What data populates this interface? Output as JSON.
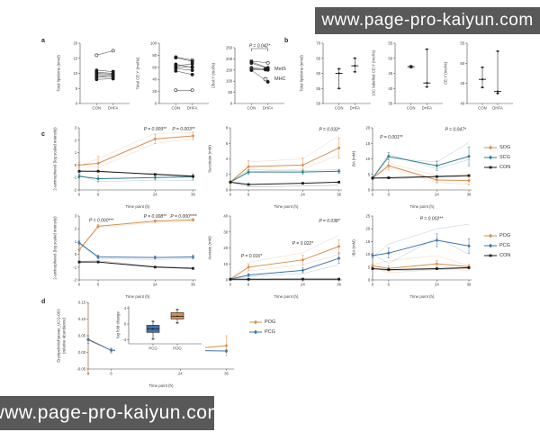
{
  "watermark": {
    "text": "www.page-pro-kaiyun.com"
  },
  "panel_labels": {
    "a": "a",
    "b": "b",
    "c": "c",
    "d": "d"
  },
  "colors": {
    "orange": "#D88E4C",
    "teal": "#2D7D8E",
    "blue": "#4173A8",
    "black": "#1c1c1c",
    "watermark_bg": "#595959"
  },
  "legends": {
    "mets": {
      "items": [
        {
          "label": "MetS",
          "marker": "filled-circle",
          "color": "#1c1c1c"
        },
        {
          "label": "MHC",
          "marker": "open-circle",
          "color": "#1c1c1c"
        }
      ]
    },
    "c_top": {
      "items": [
        {
          "label": "SOG",
          "marker": "diamond",
          "color": "#D88E4C"
        },
        {
          "label": "SCG",
          "marker": "diamond",
          "color": "#2D7D8E"
        },
        {
          "label": "CON",
          "marker": "square",
          "color": "#1c1c1c"
        }
      ]
    },
    "c_bottom": {
      "items": [
        {
          "label": "POG",
          "marker": "diamond",
          "color": "#D88E4C"
        },
        {
          "label": "PCG",
          "marker": "diamond",
          "color": "#4173A8"
        },
        {
          "label": "CON",
          "marker": "square",
          "color": "#1c1c1c"
        }
      ]
    },
    "d": {
      "items": [
        {
          "label": "POG",
          "marker": "diamond",
          "color": "#D88E4C"
        },
        {
          "label": "PCG",
          "marker": "diamond",
          "color": "#4173A8"
        }
      ]
    }
  },
  "chart_data": [
    {
      "id": "a1",
      "type": "pairs",
      "ylabel": "Total lipidome (nmol)",
      "categories": [
        "CON",
        "DHFA"
      ],
      "ylim": [
        0,
        20
      ],
      "yticks": [
        0,
        5,
        10,
        15,
        20
      ],
      "pairs": [
        {
          "a": 16,
          "b": 17.5,
          "open": true
        },
        {
          "a": 11,
          "b": 10.6
        },
        {
          "a": 10.4,
          "b": 10
        },
        {
          "a": 10,
          "b": 9.7
        },
        {
          "a": 9.6,
          "b": 9.4
        },
        {
          "a": 9.1,
          "b": 8.8
        },
        {
          "a": 8.6,
          "b": 9
        },
        {
          "a": 8,
          "b": 8.2
        }
      ]
    },
    {
      "id": "a2",
      "type": "pairs",
      "ylabel": "Total CE:Y (mol%)",
      "categories": [
        "CON",
        "DHFA"
      ],
      "ylim": [
        0,
        100
      ],
      "yticks": [
        0,
        20,
        40,
        60,
        80,
        100
      ],
      "pairs": [
        {
          "a": 77,
          "b": 72,
          "open": true
        },
        {
          "a": 76,
          "b": 70
        },
        {
          "a": 65,
          "b": 60
        },
        {
          "a": 62,
          "b": 66
        },
        {
          "a": 60,
          "b": 61
        },
        {
          "a": 58,
          "b": 55
        },
        {
          "a": 54,
          "b": 48
        },
        {
          "a": 22,
          "b": 22,
          "open": true
        }
      ]
    },
    {
      "id": "a3",
      "type": "pairs",
      "ylabel": "Chol:Y (mol%)",
      "p_label": "P = 0.042*",
      "categories": [
        "CON",
        "DHFA"
      ],
      "ylim": [
        0,
        250
      ],
      "yticks": [
        0,
        50,
        100,
        150,
        200,
        250
      ],
      "pairs": [
        {
          "a": 190,
          "b": 182,
          "open": true
        },
        {
          "a": 186,
          "b": 160
        },
        {
          "a": 181,
          "b": 157
        },
        {
          "a": 160,
          "b": 154
        },
        {
          "a": 156,
          "b": 150,
          "open": true
        },
        {
          "a": 152,
          "b": 152
        },
        {
          "a": 149,
          "b": 97
        }
      ]
    },
    {
      "id": "b1",
      "type": "range",
      "ylabel": "Total lipidome (nmol)",
      "categories": [
        "CON",
        "DHFA"
      ],
      "ylim": [
        50,
        70
      ],
      "yticks": [
        50,
        55,
        60,
        65,
        70
      ],
      "groups": [
        {
          "med": 60,
          "lo": 55,
          "hi": 61.5,
          "points": [
            55,
            60,
            61.5
          ]
        },
        {
          "med": 62.5,
          "lo": 60.5,
          "hi": 65,
          "points": [
            60.5,
            62.5,
            65
          ]
        }
      ]
    },
    {
      "id": "b2",
      "type": "range",
      "ylabel": "13C labelled CE:Y (mol%)",
      "categories": [
        "CON",
        "DHFA"
      ],
      "ylim": [
        35,
        55
      ],
      "yticks": [
        35,
        40,
        45,
        50,
        55
      ],
      "groups": [
        {
          "med": 47.2,
          "lo": 46.9,
          "hi": 47.5,
          "points": [
            46.9,
            47.2,
            47.5
          ]
        },
        {
          "med": 41.8,
          "lo": 40.5,
          "hi": 53,
          "points": [
            40.5,
            41.8,
            53
          ]
        }
      ]
    },
    {
      "id": "b3",
      "type": "range",
      "ylabel": "CE:Y (mol%)",
      "categories": [
        "CON",
        "DHFA"
      ],
      "ylim": [
        40,
        55
      ],
      "yticks": [
        40,
        45,
        50,
        55
      ],
      "groups": [
        {
          "med": 46,
          "lo": 44,
          "hi": 49,
          "points": [
            44,
            46,
            49
          ]
        },
        {
          "med": 43,
          "lo": 42.5,
          "hi": 53,
          "points": [
            42.5,
            43,
            53
          ]
        }
      ]
    },
    {
      "id": "c1",
      "type": "line",
      "ylabel": "2-aminophenol (log scaled intensity)",
      "xlabel": "Time point (h)",
      "x_values": [
        0,
        6,
        24,
        36
      ],
      "xlim": [
        0,
        37
      ],
      "ylim": [
        -2,
        3
      ],
      "yticks": [
        -2,
        -1,
        0,
        1,
        2,
        3
      ],
      "annotations": [
        {
          "x": 24,
          "y": 2.8,
          "text": "P = 0.009**"
        },
        {
          "x": 34,
          "y": 2.8,
          "text": "P = 0.003**"
        }
      ],
      "series": [
        {
          "name": "SOG",
          "color": "#D88E4C",
          "marker": "diamond",
          "mean": [
            0,
            0.15,
            2.1,
            2.35
          ],
          "err": [
            0.2,
            0.55,
            0.35,
            0.3
          ],
          "reps": [
            [
              -0.05,
              0.5,
              2.55,
              2.6
            ],
            [
              0.05,
              -0.2,
              1.75,
              2.1
            ]
          ]
        },
        {
          "name": "SCG",
          "color": "#2D7D8E",
          "marker": "diamond",
          "mean": [
            -0.9,
            -1.1,
            -1.0,
            -0.95
          ],
          "err": [
            0.15,
            0.25,
            0.2,
            0.25
          ],
          "reps": [
            [
              -0.8,
              -1.35,
              -1.2,
              -1.25
            ]
          ]
        },
        {
          "name": "CON",
          "color": "#1c1c1c",
          "marker": "square",
          "mean": [
            -0.5,
            -0.5,
            -0.75,
            -0.9
          ],
          "reps": [
            [
              -0.45,
              -0.55,
              -0.7,
              -0.85
            ]
          ]
        }
      ]
    },
    {
      "id": "c2",
      "type": "line",
      "ylabel": "Succinate (mM)",
      "xlabel": "Time point (h)",
      "x_values": [
        0,
        6,
        24,
        36
      ],
      "xlim": [
        0,
        37
      ],
      "ylim": [
        0,
        8
      ],
      "yticks": [
        0,
        2,
        4,
        6,
        8
      ],
      "annotations": [
        {
          "x": 33,
          "y": 7.6,
          "text": "P = 0.033*"
        }
      ],
      "series": [
        {
          "name": "SOG",
          "color": "#D88E4C",
          "marker": "diamond",
          "mean": [
            1,
            3,
            3.2,
            5.4
          ],
          "err": [
            0.2,
            0.8,
            0.9,
            1.3
          ],
          "reps": [
            [
              1,
              3.6,
              4,
              7
            ],
            [
              1,
              2.3,
              2.7,
              4.5
            ]
          ]
        },
        {
          "name": "SCG",
          "color": "#2D7D8E",
          "marker": "diamond",
          "mean": [
            1,
            2.3,
            2.3,
            2.4
          ],
          "err": [
            0.1,
            0.3,
            0.25,
            0.25
          ],
          "reps": [
            [
              1,
              2.6,
              2.5,
              2.6
            ]
          ]
        },
        {
          "name": "CON",
          "color": "#1c1c1c",
          "marker": "square",
          "mean": [
            1,
            0.7,
            0.85,
            1.0
          ],
          "reps": [
            [
              1,
              0.4,
              0.5,
              0.6
            ]
          ]
        }
      ]
    },
    {
      "id": "c3",
      "type": "line",
      "ylabel": "BA (mM)",
      "xlabel": "Time point (h)",
      "x_values": [
        0,
        6,
        24,
        36
      ],
      "xlim": [
        0,
        37
      ],
      "ylim": [
        0,
        20
      ],
      "yticks": [
        0,
        5,
        10,
        15,
        20
      ],
      "annotations": [
        {
          "x": 7,
          "y": 16.5,
          "text": "P = 0.001**"
        },
        {
          "x": 31,
          "y": 19,
          "text": "P = 0.047*"
        }
      ],
      "series": [
        {
          "name": "SOG",
          "color": "#D88E4C",
          "marker": "diamond",
          "mean": [
            3.8,
            7.8,
            3.2,
            3.0
          ],
          "err": [
            0.4,
            1.2,
            1,
            1.5
          ],
          "reps": [
            [
              3.8,
              7.2,
              2.4,
              1.8
            ],
            [
              3.8,
              8.6,
              4.6,
              5.2
            ]
          ]
        },
        {
          "name": "SCG",
          "color": "#2D7D8E",
          "marker": "diamond",
          "mean": [
            3.8,
            10.8,
            7.8,
            10.8
          ],
          "err": [
            0.4,
            1.2,
            1.5,
            3
          ],
          "reps": [
            [
              3.8,
              10.2,
              9,
              15.3
            ],
            [
              3.8,
              11.5,
              6.8,
              9.8
            ]
          ]
        },
        {
          "name": "CON",
          "color": "#1c1c1c",
          "marker": "square",
          "mean": [
            3.8,
            3.9,
            4.3,
            4.6
          ],
          "reps": [
            [
              3.8,
              3.6,
              4.1,
              4.4
            ]
          ]
        }
      ]
    },
    {
      "id": "c4",
      "type": "line",
      "ylabel": "2-aminophenol (log scaled intensity)",
      "xlabel": "Time point (h)",
      "x_values": [
        0,
        6,
        24,
        36
      ],
      "xlim": [
        0,
        37
      ],
      "ylim": [
        -2,
        3
      ],
      "yticks": [
        -2,
        -1,
        0,
        1,
        2,
        3
      ],
      "annotations": [
        {
          "x": 7,
          "y": 2.55,
          "text": "P = 0.000***"
        },
        {
          "x": 24,
          "y": 2.85,
          "text": "P = 0.008**"
        },
        {
          "x": 34,
          "y": 2.85,
          "text": "P = 0.000****"
        }
      ],
      "series": [
        {
          "name": "POG",
          "color": "#D88E4C",
          "marker": "diamond",
          "mean": [
            0.35,
            2.2,
            2.6,
            2.7
          ],
          "err": [
            0.15,
            0.12,
            0.1,
            0.1
          ],
          "reps": [
            [
              0.3,
              2.1,
              2.5,
              2.6
            ]
          ]
        },
        {
          "name": "PCG",
          "color": "#4173A8",
          "marker": "diamond",
          "mean": [
            0.9,
            -0.2,
            -0.25,
            -0.2
          ],
          "err": [
            0.15,
            0.15,
            0.12,
            0.15
          ],
          "reps": [
            [
              0.85,
              -0.35,
              -0.4,
              -0.35
            ]
          ]
        },
        {
          "name": "CON",
          "color": "#1c1c1c",
          "marker": "square",
          "mean": [
            -0.6,
            -0.6,
            -1.0,
            -1.1
          ],
          "reps": [
            [
              -0.55,
              -0.5,
              -0.95,
              -1.05
            ]
          ]
        }
      ]
    },
    {
      "id": "c5",
      "type": "line",
      "ylabel": "Acetate (mM)",
      "xlabel": "Time point (h)",
      "x_values": [
        0,
        6,
        24,
        36
      ],
      "xlim": [
        0,
        37
      ],
      "ylim": [
        0,
        40
      ],
      "yticks": [
        0,
        10,
        20,
        30,
        40
      ],
      "annotations": [
        {
          "x": 7,
          "y": 14,
          "text": "P = 0.016*"
        },
        {
          "x": 24,
          "y": 22,
          "text": "P = 0.022*"
        },
        {
          "x": 33,
          "y": 36,
          "text": "P = 0.038*"
        }
      ],
      "series": [
        {
          "name": "POG",
          "color": "#D88E4C",
          "marker": "diamond",
          "mean": [
            0.5,
            8,
            12.5,
            21
          ],
          "err": [
            0.3,
            2,
            3,
            4
          ],
          "reps": [
            [
              0.5,
              11,
              17,
              28
            ],
            [
              0.5,
              5.5,
              9.5,
              16
            ]
          ]
        },
        {
          "name": "PCG",
          "color": "#4173A8",
          "marker": "diamond",
          "mean": [
            0.5,
            3,
            6,
            13.5
          ],
          "err": [
            0.3,
            1,
            1.5,
            3
          ],
          "reps": [
            [
              0.5,
              2,
              4,
              9.5
            ]
          ]
        },
        {
          "name": "CON",
          "color": "#1c1c1c",
          "marker": "square",
          "mean": [
            0.4,
            0.4,
            0.5,
            0.5
          ],
          "reps": [
            [
              0.4,
              0.3,
              0.4,
              0.4
            ]
          ]
        }
      ]
    },
    {
      "id": "c6",
      "type": "line",
      "ylabel": "IBA (mM)",
      "xlabel": "Time point (h)",
      "x_values": [
        0,
        6,
        24,
        36
      ],
      "xlim": [
        0,
        37
      ],
      "ylim": [
        0,
        25
      ],
      "yticks": [
        0,
        5,
        10,
        15,
        20,
        25
      ],
      "annotations": [
        {
          "x": 22,
          "y": 23.5,
          "text": "P = 0.002**"
        }
      ],
      "series": [
        {
          "name": "POG",
          "color": "#D88E4C",
          "marker": "diamond",
          "mean": [
            5.5,
            4.5,
            6.3,
            5.2
          ],
          "err": [
            0.8,
            1,
            1.2,
            1
          ],
          "reps": [
            [
              6,
              7.5,
              9.5,
              5.5
            ],
            [
              5,
              2.8,
              4,
              3.8
            ]
          ]
        },
        {
          "name": "PCG",
          "color": "#4173A8",
          "marker": "diamond",
          "mean": [
            9.5,
            10.5,
            15.5,
            13.3
          ],
          "err": [
            1,
            2,
            2.5,
            2.8
          ],
          "reps": [
            [
              9,
              14,
              20,
              21.8
            ],
            [
              10,
              6.5,
              16.5,
              10
            ]
          ]
        },
        {
          "name": "CON",
          "color": "#1c1c1c",
          "marker": "square",
          "mean": [
            4.4,
            4,
            4.4,
            4.8
          ],
          "reps": [
            [
              4.4,
              3.6,
              4.1,
              4.5
            ]
          ]
        }
      ]
    },
    {
      "id": "d",
      "type": "line",
      "ylabel": [
        "Erysipelotrichaceae_UCG-003",
        "(relative abundance)"
      ],
      "xlabel": "Time point (h)",
      "x_values": [
        0,
        6,
        24,
        36
      ],
      "xlim": [
        0,
        38
      ],
      "ylim": [
        -0.05,
        0.15
      ],
      "yticks": [
        -0.05,
        0,
        0.05,
        0.1,
        0.15
      ],
      "ytick_labels": [
        "-0.05",
        "0.00",
        "0.05",
        "0.10",
        "0.15"
      ],
      "series": [
        {
          "name": "POG",
          "color": "#D88E4C",
          "marker": "diamond",
          "mean": [
            0.04,
            0.006,
            0.008,
            0.02
          ],
          "err": [
            0.105,
            0.008,
            0.01,
            0.03
          ]
        },
        {
          "name": "PCG",
          "color": "#4173A8",
          "marker": "diamond",
          "mean": [
            0.038,
            0.006,
            0.006,
            0.004
          ],
          "err": [
            0.012,
            0.005,
            0.005,
            0.004
          ]
        }
      ]
    },
    {
      "id": "d_inset",
      "type": "box",
      "ylabel": "log fold change",
      "categories": [
        "PCG",
        "POG"
      ],
      "ylim": [
        -5,
        4.6
      ],
      "yticks": [
        -4,
        0,
        4
      ],
      "boxes": [
        {
          "whislo": -3.8,
          "q1": -2.1,
          "med": -1.2,
          "q3": -0.3,
          "whishi": 0.7,
          "color": "#4173A8"
        },
        {
          "whislo": 0.3,
          "q1": 1.3,
          "med": 2.0,
          "q3": 2.9,
          "whishi": 3.7,
          "color": "#D88E4C"
        }
      ]
    }
  ]
}
